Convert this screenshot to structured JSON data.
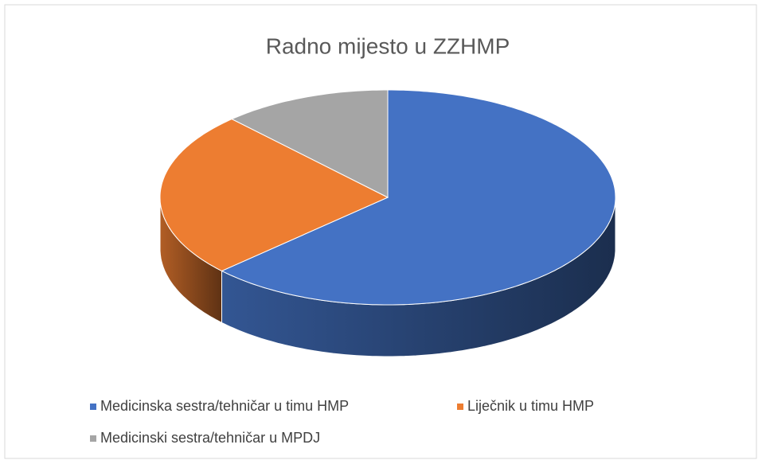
{
  "chart_data": {
    "type": "pie",
    "title": "Radno mijesto u ZZHMP",
    "categories": [
      "Medicinska sestra/tehničar u timu HMP",
      "Liječnik u timu HMP",
      "Medicinski sestra/tehničar u MPDJ"
    ],
    "values": [
      63,
      25,
      12
    ],
    "colors": [
      "#4472c4",
      "#ed7d31",
      "#a5a5a5"
    ],
    "legend": "bottom"
  }
}
